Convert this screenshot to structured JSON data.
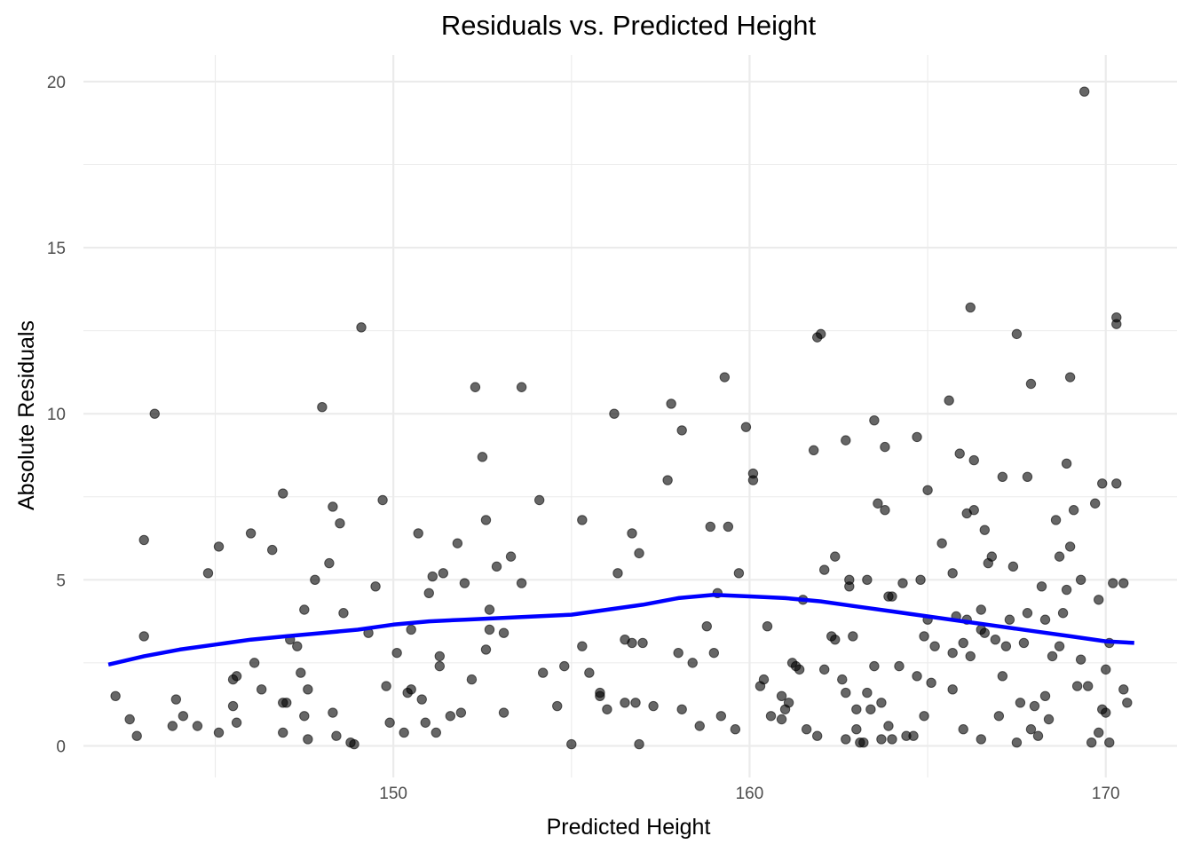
{
  "chart_data": {
    "type": "scatter",
    "title": "Residuals vs. Predicted Height",
    "xlabel": "Predicted Height",
    "ylabel": "Absolute Residuals",
    "xlim": [
      141.3,
      172
    ],
    "ylim": [
      -0.95,
      20.8
    ],
    "x_ticks": [
      150,
      160,
      170
    ],
    "x_tick_labels": [
      "150",
      "160",
      "170"
    ],
    "x_minor_ticks": [
      145,
      155,
      165
    ],
    "y_ticks": [
      0,
      5,
      10,
      15,
      20
    ],
    "y_tick_labels": [
      "0",
      "5",
      "10",
      "15",
      "20"
    ],
    "y_minor_ticks": [
      2.5,
      7.5,
      12.5,
      17.5
    ],
    "grid": true,
    "legend": "none",
    "colors": {
      "points": "#000000",
      "smooth_line": "#0000ff",
      "grid": "#ebebeb"
    },
    "series": [
      {
        "kind": "points",
        "points": [
          [
            142.2,
            1.5
          ],
          [
            142.6,
            0.8
          ],
          [
            142.8,
            0.3
          ],
          [
            143.0,
            6.2
          ],
          [
            143.0,
            3.3
          ],
          [
            143.3,
            10.0
          ],
          [
            143.8,
            0.6
          ],
          [
            143.9,
            1.4
          ],
          [
            144.1,
            0.9
          ],
          [
            144.5,
            0.6
          ],
          [
            144.8,
            5.2
          ],
          [
            145.1,
            6.0
          ],
          [
            145.1,
            0.4
          ],
          [
            145.5,
            1.2
          ],
          [
            145.5,
            2.0
          ],
          [
            145.6,
            0.7
          ],
          [
            145.6,
            2.1
          ],
          [
            146.0,
            6.4
          ],
          [
            146.1,
            2.5
          ],
          [
            146.3,
            1.7
          ],
          [
            146.6,
            5.9
          ],
          [
            146.9,
            1.3
          ],
          [
            146.9,
            7.6
          ],
          [
            146.9,
            0.4
          ],
          [
            147.0,
            1.3
          ],
          [
            147.1,
            3.2
          ],
          [
            147.3,
            3.0
          ],
          [
            147.4,
            2.2
          ],
          [
            147.5,
            4.1
          ],
          [
            147.5,
            0.9
          ],
          [
            147.6,
            1.7
          ],
          [
            147.6,
            0.2
          ],
          [
            147.8,
            5.0
          ],
          [
            148.0,
            10.2
          ],
          [
            148.2,
            5.5
          ],
          [
            148.3,
            7.2
          ],
          [
            148.3,
            1.0
          ],
          [
            148.4,
            0.3
          ],
          [
            148.5,
            6.7
          ],
          [
            148.6,
            4.0
          ],
          [
            148.8,
            0.1
          ],
          [
            148.9,
            0.05
          ],
          [
            149.1,
            12.6
          ],
          [
            149.3,
            3.4
          ],
          [
            149.5,
            4.8
          ],
          [
            149.7,
            7.4
          ],
          [
            149.8,
            1.8
          ],
          [
            149.9,
            0.7
          ],
          [
            150.1,
            2.8
          ],
          [
            150.3,
            0.4
          ],
          [
            150.4,
            1.6
          ],
          [
            150.5,
            3.5
          ],
          [
            150.5,
            1.7
          ],
          [
            150.7,
            6.4
          ],
          [
            150.8,
            1.4
          ],
          [
            150.9,
            0.7
          ],
          [
            151.0,
            4.6
          ],
          [
            151.1,
            5.1
          ],
          [
            151.2,
            0.4
          ],
          [
            151.3,
            2.4
          ],
          [
            151.3,
            2.7
          ],
          [
            151.4,
            5.2
          ],
          [
            151.6,
            0.9
          ],
          [
            151.8,
            6.1
          ],
          [
            151.9,
            1.0
          ],
          [
            152.0,
            4.9
          ],
          [
            152.2,
            2.0
          ],
          [
            152.3,
            10.8
          ],
          [
            152.5,
            8.7
          ],
          [
            152.6,
            2.9
          ],
          [
            152.6,
            6.8
          ],
          [
            152.7,
            4.1
          ],
          [
            152.7,
            3.5
          ],
          [
            152.9,
            5.4
          ],
          [
            153.1,
            1.0
          ],
          [
            153.1,
            3.4
          ],
          [
            153.3,
            5.7
          ],
          [
            153.6,
            4.9
          ],
          [
            153.6,
            10.8
          ],
          [
            154.1,
            7.4
          ],
          [
            154.2,
            2.2
          ],
          [
            154.6,
            1.2
          ],
          [
            154.8,
            2.4
          ],
          [
            155.0,
            0.05
          ],
          [
            155.3,
            6.8
          ],
          [
            155.3,
            3.0
          ],
          [
            155.5,
            2.2
          ],
          [
            155.8,
            1.6
          ],
          [
            155.8,
            1.5
          ],
          [
            156.0,
            1.1
          ],
          [
            156.2,
            10.0
          ],
          [
            156.3,
            5.2
          ],
          [
            156.5,
            1.3
          ],
          [
            156.5,
            3.2
          ],
          [
            156.7,
            3.1
          ],
          [
            156.7,
            6.4
          ],
          [
            156.8,
            1.3
          ],
          [
            156.9,
            0.05
          ],
          [
            156.9,
            5.8
          ],
          [
            157.0,
            3.1
          ],
          [
            157.3,
            1.2
          ],
          [
            157.7,
            8.0
          ],
          [
            157.8,
            10.3
          ],
          [
            158.0,
            2.8
          ],
          [
            158.1,
            1.1
          ],
          [
            158.1,
            9.5
          ],
          [
            158.4,
            2.5
          ],
          [
            158.6,
            0.6
          ],
          [
            158.8,
            3.6
          ],
          [
            158.9,
            6.6
          ],
          [
            159.0,
            2.8
          ],
          [
            159.1,
            4.6
          ],
          [
            159.2,
            0.9
          ],
          [
            159.3,
            11.1
          ],
          [
            159.4,
            6.6
          ],
          [
            159.6,
            0.5
          ],
          [
            159.7,
            5.2
          ],
          [
            159.9,
            9.6
          ],
          [
            160.1,
            8.0
          ],
          [
            160.1,
            8.2
          ],
          [
            160.3,
            1.8
          ],
          [
            160.4,
            2.0
          ],
          [
            160.5,
            3.6
          ],
          [
            160.6,
            0.9
          ],
          [
            160.9,
            0.8
          ],
          [
            160.9,
            1.5
          ],
          [
            161.0,
            1.1
          ],
          [
            161.1,
            1.3
          ],
          [
            161.2,
            2.5
          ],
          [
            161.3,
            2.4
          ],
          [
            161.4,
            2.3
          ],
          [
            161.5,
            4.4
          ],
          [
            161.6,
            0.5
          ],
          [
            161.8,
            8.9
          ],
          [
            161.9,
            0.3
          ],
          [
            161.9,
            12.3
          ],
          [
            162.0,
            12.4
          ],
          [
            162.1,
            5.3
          ],
          [
            162.1,
            2.3
          ],
          [
            162.3,
            3.3
          ],
          [
            162.4,
            3.2
          ],
          [
            162.4,
            5.7
          ],
          [
            162.6,
            2.0
          ],
          [
            162.7,
            1.6
          ],
          [
            162.7,
            9.2
          ],
          [
            162.7,
            0.2
          ],
          [
            162.8,
            4.8
          ],
          [
            162.8,
            5.0
          ],
          [
            162.9,
            3.3
          ],
          [
            163.0,
            0.5
          ],
          [
            163.0,
            1.1
          ],
          [
            163.1,
            0.1
          ],
          [
            163.2,
            0.1
          ],
          [
            163.3,
            1.6
          ],
          [
            163.3,
            5.0
          ],
          [
            163.4,
            1.1
          ],
          [
            163.5,
            2.4
          ],
          [
            163.5,
            9.8
          ],
          [
            163.6,
            7.3
          ],
          [
            163.7,
            1.3
          ],
          [
            163.7,
            0.2
          ],
          [
            163.8,
            7.1
          ],
          [
            163.8,
            9.0
          ],
          [
            163.9,
            4.5
          ],
          [
            163.9,
            0.6
          ],
          [
            164.0,
            4.5
          ],
          [
            164.0,
            0.2
          ],
          [
            164.2,
            2.4
          ],
          [
            164.3,
            4.9
          ],
          [
            164.4,
            0.3
          ],
          [
            164.6,
            0.3
          ],
          [
            164.7,
            2.1
          ],
          [
            164.7,
            9.3
          ],
          [
            164.8,
            5.0
          ],
          [
            164.9,
            3.3
          ],
          [
            164.9,
            0.9
          ],
          [
            165.0,
            3.8
          ],
          [
            165.0,
            7.7
          ],
          [
            165.1,
            1.9
          ],
          [
            165.2,
            3.0
          ],
          [
            165.4,
            6.1
          ],
          [
            165.6,
            10.4
          ],
          [
            165.7,
            1.7
          ],
          [
            165.7,
            5.2
          ],
          [
            165.7,
            2.8
          ],
          [
            165.8,
            3.9
          ],
          [
            165.9,
            8.8
          ],
          [
            166.0,
            3.1
          ],
          [
            166.0,
            0.5
          ],
          [
            166.1,
            3.8
          ],
          [
            166.1,
            7.0
          ],
          [
            166.2,
            13.2
          ],
          [
            166.2,
            2.7
          ],
          [
            166.3,
            8.6
          ],
          [
            166.3,
            7.1
          ],
          [
            166.5,
            0.2
          ],
          [
            166.5,
            3.5
          ],
          [
            166.5,
            4.1
          ],
          [
            166.6,
            6.5
          ],
          [
            166.6,
            3.4
          ],
          [
            166.7,
            5.5
          ],
          [
            166.8,
            5.7
          ],
          [
            166.9,
            3.2
          ],
          [
            167.0,
            0.9
          ],
          [
            167.1,
            8.1
          ],
          [
            167.1,
            2.1
          ],
          [
            167.2,
            3.0
          ],
          [
            167.3,
            3.8
          ],
          [
            167.4,
            5.4
          ],
          [
            167.5,
            0.1
          ],
          [
            167.5,
            12.4
          ],
          [
            167.6,
            1.3
          ],
          [
            167.7,
            3.1
          ],
          [
            167.8,
            4.0
          ],
          [
            167.8,
            8.1
          ],
          [
            167.9,
            10.9
          ],
          [
            167.9,
            0.5
          ],
          [
            168.0,
            1.2
          ],
          [
            168.1,
            0.3
          ],
          [
            168.2,
            4.8
          ],
          [
            168.3,
            1.5
          ],
          [
            168.3,
            3.8
          ],
          [
            168.4,
            0.8
          ],
          [
            168.5,
            2.7
          ],
          [
            168.6,
            6.8
          ],
          [
            168.7,
            5.7
          ],
          [
            168.7,
            3.0
          ],
          [
            168.8,
            4.0
          ],
          [
            168.9,
            8.5
          ],
          [
            168.9,
            4.7
          ],
          [
            169.0,
            11.1
          ],
          [
            169.0,
            6.0
          ],
          [
            169.1,
            7.1
          ],
          [
            169.2,
            1.8
          ],
          [
            169.3,
            5.0
          ],
          [
            169.3,
            2.6
          ],
          [
            169.4,
            19.7
          ],
          [
            169.5,
            1.8
          ],
          [
            169.6,
            0.1
          ],
          [
            169.7,
            7.3
          ],
          [
            169.8,
            0.4
          ],
          [
            169.8,
            4.4
          ],
          [
            169.9,
            1.1
          ],
          [
            169.9,
            7.9
          ],
          [
            170.0,
            2.3
          ],
          [
            170.0,
            1.0
          ],
          [
            170.1,
            3.1
          ],
          [
            170.1,
            0.1
          ],
          [
            170.2,
            4.9
          ],
          [
            170.3,
            7.9
          ],
          [
            170.3,
            12.9
          ],
          [
            170.3,
            12.7
          ],
          [
            170.5,
            1.7
          ],
          [
            170.5,
            4.9
          ],
          [
            170.6,
            1.3
          ]
        ]
      },
      {
        "kind": "smooth",
        "points": [
          [
            142.0,
            2.45
          ],
          [
            143.0,
            2.7
          ],
          [
            144.0,
            2.9
          ],
          [
            145.0,
            3.05
          ],
          [
            146.0,
            3.2
          ],
          [
            147.0,
            3.3
          ],
          [
            148.0,
            3.4
          ],
          [
            149.0,
            3.5
          ],
          [
            150.0,
            3.65
          ],
          [
            151.0,
            3.75
          ],
          [
            152.0,
            3.8
          ],
          [
            153.0,
            3.85
          ],
          [
            154.0,
            3.9
          ],
          [
            155.0,
            3.95
          ],
          [
            156.0,
            4.1
          ],
          [
            157.0,
            4.25
          ],
          [
            158.0,
            4.45
          ],
          [
            159.0,
            4.55
          ],
          [
            160.0,
            4.5
          ],
          [
            161.0,
            4.45
          ],
          [
            162.0,
            4.35
          ],
          [
            163.0,
            4.2
          ],
          [
            164.0,
            4.05
          ],
          [
            165.0,
            3.9
          ],
          [
            166.0,
            3.75
          ],
          [
            167.0,
            3.6
          ],
          [
            168.0,
            3.45
          ],
          [
            169.0,
            3.3
          ],
          [
            170.0,
            3.15
          ],
          [
            170.8,
            3.1
          ]
        ]
      }
    ]
  }
}
